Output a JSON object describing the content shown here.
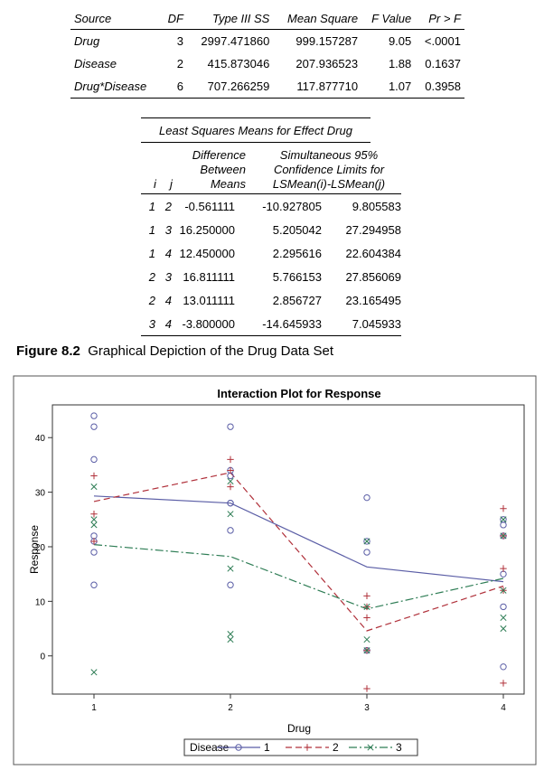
{
  "anova": {
    "headers": [
      "Source",
      "DF",
      "Type III SS",
      "Mean Square",
      "F Value",
      "Pr > F"
    ],
    "rows": [
      [
        "Drug",
        "3",
        "2997.471860",
        "999.157287",
        "9.05",
        "<.0001"
      ],
      [
        "Disease",
        "2",
        "415.873046",
        "207.936523",
        "1.88",
        "0.1637"
      ],
      [
        "Drug*Disease",
        "6",
        "707.266259",
        "117.877710",
        "1.07",
        "0.3958"
      ]
    ]
  },
  "lsmeans": {
    "title": "Least Squares Means for Effect Drug",
    "header_i": "i",
    "header_j": "j",
    "header_diff": [
      "Difference",
      "Between",
      "Means"
    ],
    "header_ci": [
      "Simultaneous 95%",
      "Confidence Limits for",
      "LSMean(i)-LSMean(j)"
    ],
    "rows": [
      [
        "1",
        "2",
        "-0.561111",
        "-10.927805",
        "9.805583"
      ],
      [
        "1",
        "3",
        "16.250000",
        "5.205042",
        "27.294958"
      ],
      [
        "1",
        "4",
        "12.450000",
        "2.295616",
        "22.604384"
      ],
      [
        "2",
        "3",
        "16.811111",
        "5.766153",
        "27.856069"
      ],
      [
        "2",
        "4",
        "13.011111",
        "2.856727",
        "23.165495"
      ],
      [
        "3",
        "4",
        "-3.800000",
        "-14.645933",
        "7.045933"
      ]
    ]
  },
  "figure": {
    "label": "Figure 8.2",
    "caption": "Graphical Depiction of the Drug Data Set"
  },
  "chart_data": {
    "type": "line",
    "title": "Interaction Plot for Response",
    "xlabel": "Drug",
    "ylabel": "Response",
    "categories": [
      "1",
      "2",
      "3",
      "4"
    ],
    "x_ticks": [
      "1",
      "2",
      "3",
      "4"
    ],
    "y_ticks": [
      0,
      10,
      20,
      30,
      40
    ],
    "ylim": [
      -7,
      46
    ],
    "legend_title": "Disease",
    "legend_position": "bottom",
    "series": [
      {
        "name": "1",
        "color": "#5B5EA6",
        "marker": "circle",
        "line_style": "solid",
        "means": [
          29.3,
          28.0,
          16.3,
          13.6
        ],
        "points": [
          [
            44,
            42,
            36,
            22,
            21,
            19,
            13
          ],
          [
            42,
            34,
            33,
            28,
            28,
            23,
            13
          ],
          [
            29,
            21,
            19,
            1
          ],
          [
            25,
            24,
            22,
            15,
            9,
            -2
          ]
        ]
      },
      {
        "name": "2",
        "color": "#B0303A",
        "marker": "plus",
        "line_style": "dash",
        "means": [
          28.3,
          33.6,
          4.6,
          12.8
        ],
        "points": [
          [
            33,
            26,
            21
          ],
          [
            36,
            34,
            31
          ],
          [
            11,
            9,
            7,
            1,
            -6
          ],
          [
            27,
            22,
            16,
            12,
            -5
          ]
        ]
      },
      {
        "name": "3",
        "color": "#2E7D55",
        "marker": "x",
        "line_style": "dashdot",
        "means": [
          20.4,
          18.2,
          8.6,
          14.2
        ],
        "points": [
          [
            31,
            25,
            24,
            -3
          ],
          [
            32,
            26,
            16,
            4,
            3
          ],
          [
            21,
            9,
            3,
            1
          ],
          [
            25,
            22,
            12,
            7,
            5
          ]
        ]
      }
    ]
  }
}
